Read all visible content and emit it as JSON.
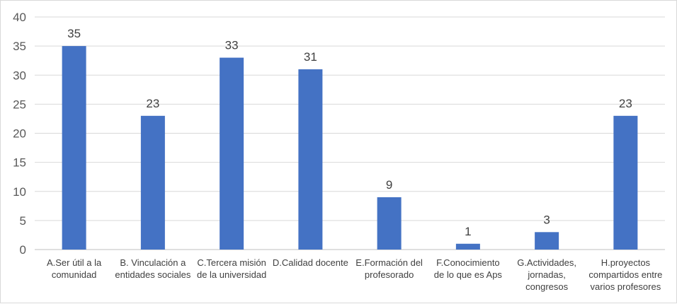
{
  "chart_data": {
    "type": "bar",
    "title": "",
    "xlabel": "",
    "ylabel": "",
    "ylim": [
      0,
      40
    ],
    "yticks": [
      0,
      5,
      10,
      15,
      20,
      25,
      30,
      35,
      40
    ],
    "grid": true,
    "legend": "none",
    "bar_color": "#4472c4",
    "categories": [
      [
        "A.Ser útil a la",
        "comunidad"
      ],
      [
        "B. Vinculación a",
        "entidades sociales"
      ],
      [
        "C.Tercera misión",
        "de la universidad"
      ],
      [
        "D.Calidad docente"
      ],
      [
        "E.Formación del",
        "profesorado"
      ],
      [
        "F.Conocimiento",
        "de lo que es Aps"
      ],
      [
        "G.Actividades,",
        "jornadas,",
        "congresos"
      ],
      [
        "H.proyectos",
        "compartidos entre",
        "varios profesores"
      ]
    ],
    "values": [
      35,
      23,
      33,
      31,
      9,
      1,
      3,
      23
    ]
  }
}
